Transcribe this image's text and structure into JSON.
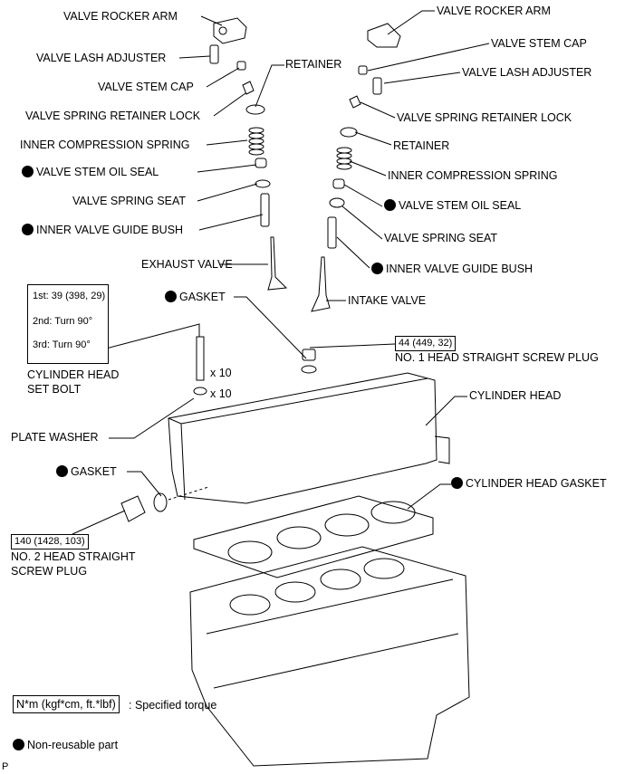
{
  "labels": {
    "valve_rocker_arm_left": "VALVE ROCKER ARM",
    "valve_lash_adjuster_left": "VALVE LASH ADJUSTER",
    "valve_stem_cap_left": "VALVE STEM CAP",
    "valve_spring_retainer_lock_left": "VALVE SPRING RETAINER LOCK",
    "retainer_left": "RETAINER",
    "inner_compression_spring_left": "INNER COMPRESSION SPRING",
    "valve_stem_oil_seal_left": "VALVE STEM OIL SEAL",
    "valve_spring_seat_left": "VALVE SPRING SEAT",
    "inner_valve_guide_bush_left": "INNER VALVE GUIDE BUSH",
    "exhaust_valve": "EXHAUST VALVE",
    "valve_rocker_arm_right": "VALVE ROCKER ARM",
    "valve_stem_cap_right": "VALVE STEM CAP",
    "valve_lash_adjuster_right": "VALVE LASH ADJUSTER",
    "valve_spring_retainer_lock_right": "VALVE SPRING RETAINER LOCK",
    "retainer_right": "RETAINER",
    "inner_compression_spring_right": "INNER COMPRESSION SPRING",
    "valve_stem_oil_seal_right": "VALVE STEM OIL SEAL",
    "valve_spring_seat_right": "VALVE SPRING SEAT",
    "inner_valve_guide_bush_right": "INNER VALVE GUIDE BUSH",
    "intake_valve": "INTAKE VALVE",
    "gasket_top": "GASKET",
    "no1_plug": "NO. 1 HEAD STRAIGHT SCREW PLUG",
    "cylinder_head": "CYLINDER HEAD",
    "cylinder_head_set_bolt_1": "CYLINDER HEAD",
    "cylinder_head_set_bolt_2": "SET BOLT",
    "x10_bolt": "x 10",
    "x10_washer": "x 10",
    "plate_washer": "PLATE WASHER",
    "gasket_left": "GASKET",
    "cylinder_head_gasket": "CYLINDER HEAD GASKET",
    "no2_plug_1": "NO. 2 HEAD STRAIGHT",
    "no2_plug_2": "SCREW PLUG"
  },
  "torque": {
    "bolt_step1": "1st: 39 (398, 29)",
    "bolt_step2": "2nd: Turn 90°",
    "bolt_step3": "3rd: Turn 90°",
    "no1_plug": "44 (449, 32)",
    "no2_plug": "140 (1428, 103)"
  },
  "legend": {
    "torque_unit": "N*m (kgf*cm, ft.*lbf)",
    "torque_desc": ": Specified torque",
    "non_reusable": "Non-reusable part"
  },
  "corner_mark": "P"
}
